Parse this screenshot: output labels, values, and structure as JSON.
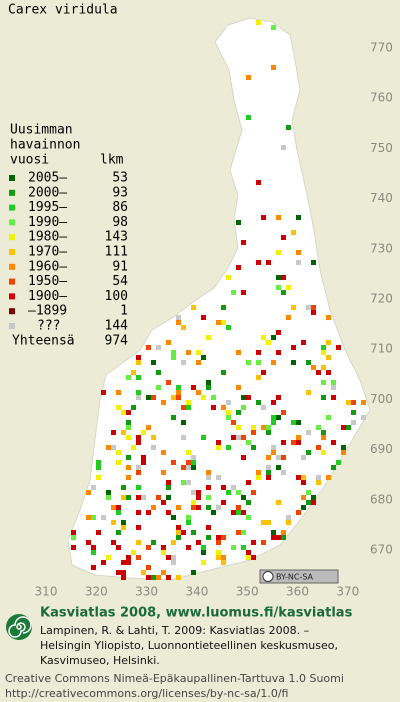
{
  "title": "Carex viridula",
  "legend": {
    "header": [
      "Uusimman",
      "havainnon",
      "vuosi"
    ],
    "count_header": "lkm",
    "rows": [
      {
        "label": "2005–",
        "count": 53,
        "color": "#006400"
      },
      {
        "label": "2000–",
        "count": 93,
        "color": "#129a12"
      },
      {
        "label": "1995–",
        "count": 86,
        "color": "#22cc22"
      },
      {
        "label": "1990–",
        "count": 98,
        "color": "#66ee44"
      },
      {
        "label": "1980–",
        "count": 143,
        "color": "#f2f200"
      },
      {
        "label": "1970–",
        "count": 111,
        "color": "#ffc000"
      },
      {
        "label": "1960–",
        "count": 91,
        "color": "#ff8800"
      },
      {
        "label": "1950–",
        "count": 54,
        "color": "#ee4400"
      },
      {
        "label": "1900–",
        "count": 100,
        "color": "#cc0000"
      },
      {
        "label": "–1899",
        "count": 1,
        "color": "#7a0000"
      },
      {
        "label": "???",
        "count": 144,
        "color": "#c8c8c8"
      }
    ],
    "total": {
      "label": "Yhteensä",
      "value": 974
    }
  },
  "axes": {
    "x_ticks": [
      310,
      320,
      330,
      340,
      350,
      360,
      370
    ],
    "y_ticks": [
      670,
      680,
      690,
      700,
      710,
      720,
      730,
      740,
      750,
      760,
      770
    ]
  },
  "license_badge": "BY-NC-SA",
  "credits": {
    "headline": "Kasviatlas 2008, www.luomus.fi/kasviatlas",
    "citation": [
      "Lampinen, R. & Lahti, T. 2009: Kasviatlas 2008. –",
      "Helsingin Yliopisto, Luonnontieteellinen keskusmuseo,",
      "Kasvimuseo, Helsinki."
    ],
    "license": [
      "Creative Commons Nimeä-Epäkaupallinen-Tarttuva 1.0 Suomi",
      "http://creativecommons.org/licenses/by-nc-sa/1.0/fi"
    ]
  }
}
